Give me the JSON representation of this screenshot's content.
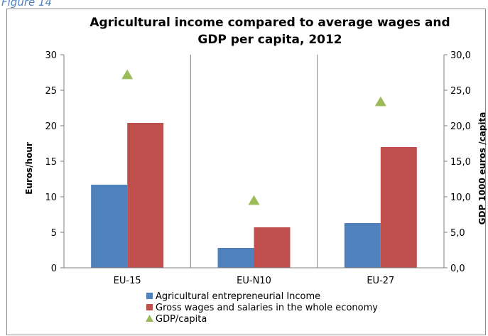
{
  "caption": "Figure 14",
  "chart_data": {
    "type": "bar",
    "title_line1": "Agricultural income compared to average wages and",
    "title_line2": "GDP per capita, 2012",
    "categories": [
      "EU-15",
      "EU-N10",
      "EU-27"
    ],
    "ylabel": "Euros/hour",
    "y2label": "GDP 1000 euros /capita",
    "ylim": [
      0,
      30
    ],
    "y2lim": [
      0,
      30
    ],
    "yticks": [
      "0",
      "5",
      "10",
      "15",
      "20",
      "25",
      "30"
    ],
    "y2ticks": [
      "0,0",
      "5,0",
      "10,0",
      "15,0",
      "20,0",
      "25,0",
      "30,0"
    ],
    "grid": false,
    "legend_position": "bottom",
    "series": [
      {
        "name": "Agricultural entrepreneurial Income",
        "type": "bar",
        "axis": "left",
        "color": "#4f81bd",
        "values": [
          11.7,
          2.8,
          6.3
        ]
      },
      {
        "name": "Gross wages and salaries in the whole economy",
        "type": "bar",
        "axis": "left",
        "color": "#c0504d",
        "values": [
          20.4,
          5.7,
          17.0
        ]
      },
      {
        "name": "GDP/capita",
        "type": "scatter",
        "marker": "triangle",
        "axis": "right",
        "color": "#9bbb59",
        "values": [
          27.2,
          9.5,
          23.4
        ]
      }
    ]
  }
}
